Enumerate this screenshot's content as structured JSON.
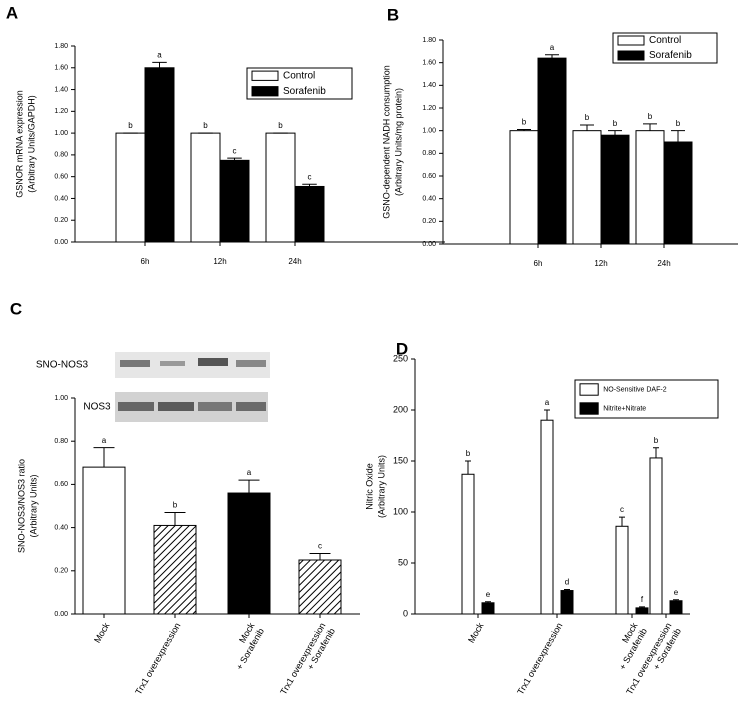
{
  "chart_data": [
    {
      "type": "bar",
      "panel": "A",
      "ylabel": [
        "GSNOR mRNA expression",
        "(Arbitrary Units/GAPDH)"
      ],
      "categories": [
        "6h",
        "12h",
        "24h"
      ],
      "series": [
        {
          "name": "Control",
          "color": "#ffffff",
          "values": [
            1.0,
            1.0,
            1.0
          ],
          "errors": [
            0,
            0,
            0
          ],
          "letters": [
            "b",
            "b",
            "b"
          ]
        },
        {
          "name": "Sorafenib",
          "color": "#000000",
          "values": [
            1.6,
            0.75,
            0.51
          ],
          "errors": [
            0.05,
            0.02,
            0.02
          ],
          "letters": [
            "a",
            "c",
            "c"
          ]
        }
      ],
      "ylim": [
        0,
        1.8
      ],
      "yticks": [
        {
          "value": 0,
          "label": "0.00"
        },
        {
          "value": 0.2,
          "label": "0.20"
        },
        {
          "value": 0.4,
          "label": "0.40"
        },
        {
          "value": 0.6,
          "label": "0.60"
        },
        {
          "value": 0.8,
          "label": "0.80"
        },
        {
          "value": 1.0,
          "label": "1.00"
        },
        {
          "value": 1.2,
          "label": "1.20"
        },
        {
          "value": 1.4,
          "label": "1.40"
        },
        {
          "value": 1.6,
          "label": "1.60"
        },
        {
          "value": 1.8,
          "label": "1.80"
        }
      ],
      "legend": "upper right"
    },
    {
      "type": "bar",
      "panel": "B",
      "ylabel": [
        "GSNO-dependent NADH consumption",
        "(Arbitrary Units/mg protein)"
      ],
      "categories": [
        "6h",
        "12h",
        "24h"
      ],
      "series": [
        {
          "name": "Control",
          "color": "#ffffff",
          "values": [
            1.0,
            1.0,
            1.0
          ],
          "errors": [
            0.01,
            0.05,
            0.06
          ],
          "letters": [
            "b",
            "b",
            "b"
          ]
        },
        {
          "name": "Sorafenib",
          "color": "#000000",
          "values": [
            1.64,
            0.96,
            0.9
          ],
          "errors": [
            0.03,
            0.04,
            0.1
          ],
          "letters": [
            "a",
            "b",
            "b"
          ]
        }
      ],
      "ylim": [
        0,
        1.8
      ],
      "yticks": [
        {
          "value": 0,
          "label": "0.00"
        },
        {
          "value": 0.2,
          "label": "0.20"
        },
        {
          "value": 0.4,
          "label": "0.40"
        },
        {
          "value": 0.6,
          "label": "0.60"
        },
        {
          "value": 0.8,
          "label": "0.80"
        },
        {
          "value": 1.0,
          "label": "1.00"
        },
        {
          "value": 1.2,
          "label": "1.20"
        },
        {
          "value": 1.4,
          "label": "1.40"
        },
        {
          "value": 1.6,
          "label": "1.60"
        },
        {
          "value": 1.8,
          "label": "1.80"
        }
      ],
      "legend": "upper right"
    },
    {
      "type": "bar",
      "panel": "C",
      "blot_labels": [
        "SNO-NOS3",
        "NOS3"
      ],
      "ylabel": [
        "SNO-NOS3/NOS3 ratio",
        "(Arbitrary Units)"
      ],
      "categories": [
        [
          "Mock"
        ],
        [
          "Trx1 overexpression"
        ],
        [
          "Mock",
          "+ Sorafenib"
        ],
        [
          "Trx1 overexpression",
          "+ Sorafenib"
        ]
      ],
      "values": [
        0.68,
        0.41,
        0.56,
        0.25
      ],
      "errors": [
        0.09,
        0.06,
        0.06,
        0.03
      ],
      "letters": [
        "a",
        "b",
        "a",
        "c"
      ],
      "colors": [
        "#ffffff",
        "#000000",
        "#000000",
        "#000000"
      ],
      "patterns": [
        "solid",
        "hatch",
        "solid",
        "hatch"
      ],
      "ylim": [
        0,
        1.0
      ],
      "yticks": [
        {
          "value": 0,
          "label": "0.00"
        },
        {
          "value": 0.2,
          "label": "0.20"
        },
        {
          "value": 0.4,
          "label": "0.40"
        },
        {
          "value": 0.6,
          "label": "0.60"
        },
        {
          "value": 0.8,
          "label": "0.80"
        },
        {
          "value": 1.0,
          "label": "1.00"
        }
      ]
    },
    {
      "type": "bar",
      "panel": "D",
      "ylabel": [
        "Nitric Oxide",
        "(Arbitrary Units)"
      ],
      "categories": [
        [
          "Mock"
        ],
        [
          "Trx1 overexpression"
        ],
        [
          "Mock",
          "+ Sorafenib"
        ],
        [
          "Trx1 overexpression",
          "+ Sorafenib"
        ]
      ],
      "series": [
        {
          "name": "NO-Sensitive DAF-2",
          "color": "#ffffff",
          "values": [
            137,
            190,
            86,
            153
          ],
          "errors": [
            13,
            10,
            9,
            10
          ],
          "letters": [
            "b",
            "a",
            "c",
            "b"
          ]
        },
        {
          "name": "Nitrite+Nitrate",
          "color": "#000000",
          "values": [
            11,
            23,
            6,
            13
          ],
          "errors": [
            1,
            1,
            1,
            1
          ],
          "letters": [
            "e",
            "d",
            "f",
            "e"
          ]
        }
      ],
      "ylim": [
        0,
        250
      ],
      "yticks": [
        0,
        50,
        100,
        150,
        200,
        250
      ],
      "legend": "upper right"
    }
  ]
}
